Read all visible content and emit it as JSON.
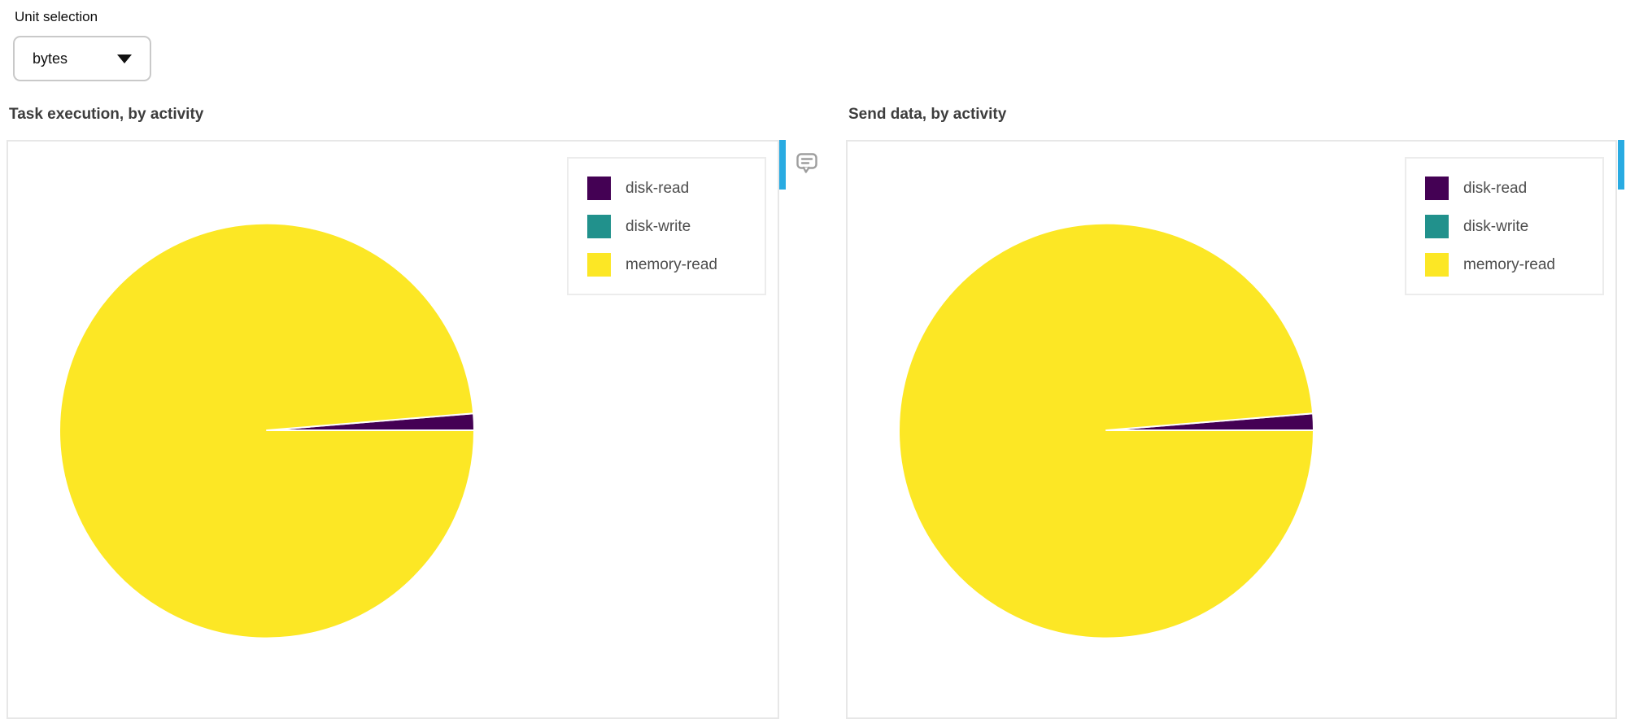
{
  "unit_selection": {
    "label": "Unit selection",
    "value": "bytes"
  },
  "ui": {
    "accent_bar_color": "#29abe2",
    "comment_icon": "speech-bubble",
    "dropdown_caret_icon": "chevron-down"
  },
  "chart_data": [
    {
      "type": "pie",
      "title": "Task execution, by activity",
      "unit": "bytes",
      "start_angle_deg": 0,
      "direction": "counterclockwise",
      "legend_position": "upper-right",
      "grid": false,
      "slices": [
        {
          "label": "disk-read",
          "percent": 1.3,
          "color": "#440154"
        },
        {
          "label": "disk-write",
          "percent": 0.0,
          "color": "#21918c"
        },
        {
          "label": "memory-read",
          "percent": 98.7,
          "color": "#fce725"
        }
      ]
    },
    {
      "type": "pie",
      "title": "Send data, by activity",
      "unit": "bytes",
      "start_angle_deg": 0,
      "direction": "counterclockwise",
      "legend_position": "upper-right",
      "grid": false,
      "slices": [
        {
          "label": "disk-read",
          "percent": 1.3,
          "color": "#440154"
        },
        {
          "label": "disk-write",
          "percent": 0.0,
          "color": "#21918c"
        },
        {
          "label": "memory-read",
          "percent": 98.7,
          "color": "#fce725"
        }
      ]
    }
  ]
}
